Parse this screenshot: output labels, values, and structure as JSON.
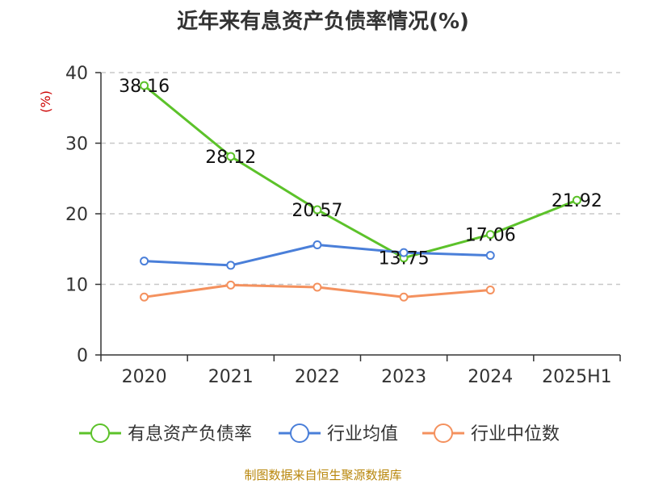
{
  "chart_data": {
    "type": "line",
    "title": "近年来有息资产负债率情况(%)",
    "ylabel": "(%)",
    "xlabel": "",
    "categories": [
      "2020",
      "2021",
      "2022",
      "2023",
      "2024",
      "2025H1"
    ],
    "ylim": [
      0,
      40
    ],
    "yticks": [
      0,
      10,
      20,
      30,
      40
    ],
    "grid": "horizontal dashed",
    "legend_position": "bottom",
    "series": [
      {
        "name": "有息资产负债率",
        "color": "#5cc22a",
        "values": [
          38.16,
          28.12,
          20.57,
          13.75,
          17.06,
          21.92
        ],
        "show_labels": true
      },
      {
        "name": "行业均值",
        "color": "#4a7fd9",
        "values": [
          13.3,
          12.7,
          15.6,
          14.5,
          14.1,
          null
        ],
        "show_labels": false
      },
      {
        "name": "行业中位数",
        "color": "#f4915e",
        "values": [
          8.2,
          9.9,
          9.6,
          8.2,
          9.2,
          null
        ],
        "show_labels": false
      }
    ]
  },
  "colors": {
    "ylabel": "#cc0000",
    "source": "#b8860b"
  },
  "source": "制图数据来自恒生聚源数据库"
}
